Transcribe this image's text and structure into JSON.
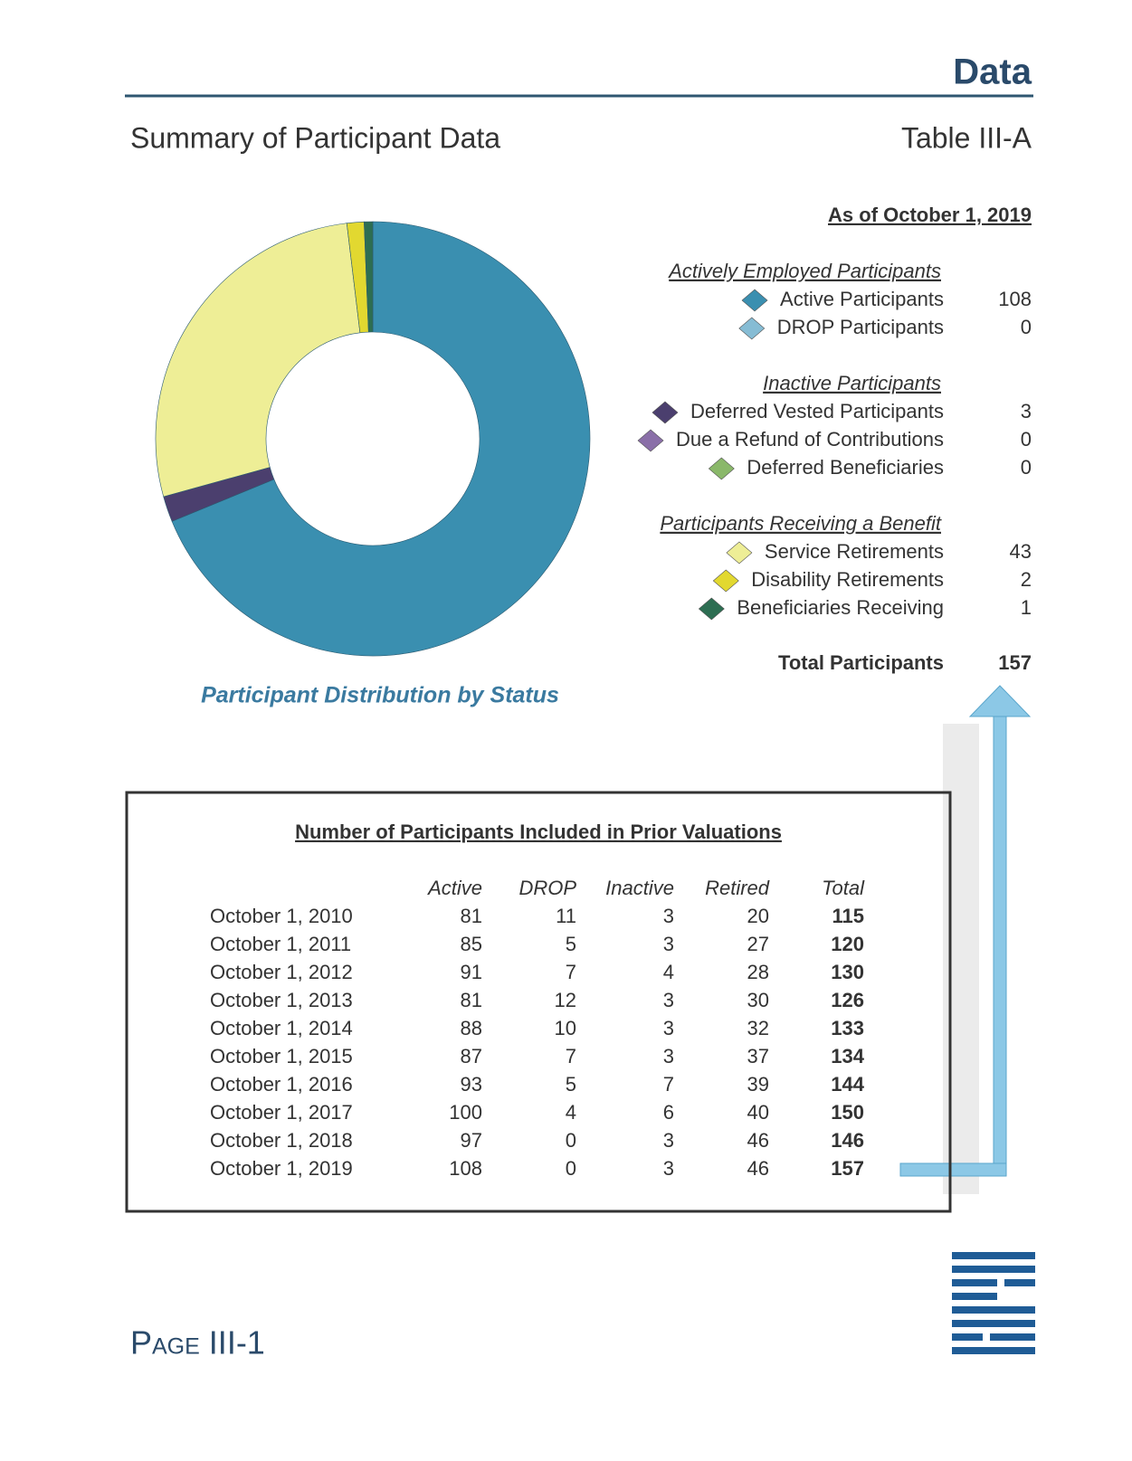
{
  "header": {
    "section": "Data",
    "title": "Summary of Participant Data",
    "table_id": "Table III-A"
  },
  "chart_data": {
    "type": "pie",
    "hole": true,
    "title": "Participant Distribution by Status",
    "subtitle": "As of October 1, 2019",
    "groups": [
      {
        "name": "Actively Employed Participants",
        "categories": [
          "Active Participants",
          "DROP Participants"
        ],
        "values": [
          108,
          0
        ],
        "colors": [
          "#3a8fb0",
          "#86bcd4"
        ]
      },
      {
        "name": "Inactive Participants",
        "categories": [
          "Deferred Vested Participants",
          "Due a Refund of Contributions",
          "Deferred Beneficiaries"
        ],
        "values": [
          3,
          0,
          0
        ],
        "colors": [
          "#4b3f6e",
          "#8a6fa8",
          "#8ab86a"
        ]
      },
      {
        "name": "Participants Receiving a Benefit",
        "categories": [
          "Service Retirements",
          "Disability Retirements",
          "Beneficiaries Receiving"
        ],
        "values": [
          43,
          2,
          1
        ],
        "colors": [
          "#eeee96",
          "#e2d830",
          "#2d6e52"
        ]
      }
    ],
    "total_label": "Total Participants",
    "total": 157
  },
  "table": {
    "title": "Number of Participants Included in Prior Valuations",
    "columns": [
      "Active",
      "DROP",
      "Inactive",
      "Retired",
      "Total"
    ],
    "rows": [
      [
        "October 1, 2010",
        81,
        11,
        3,
        20,
        115
      ],
      [
        "October 1, 2011",
        85,
        5,
        3,
        27,
        120
      ],
      [
        "October 1, 2012",
        91,
        7,
        4,
        28,
        130
      ],
      [
        "October 1, 2013",
        81,
        12,
        3,
        30,
        126
      ],
      [
        "October 1, 2014",
        88,
        10,
        3,
        32,
        133
      ],
      [
        "October 1, 2015",
        87,
        7,
        3,
        37,
        134
      ],
      [
        "October 1, 2016",
        93,
        5,
        7,
        39,
        144
      ],
      [
        "October 1, 2017",
        100,
        4,
        6,
        40,
        150
      ],
      [
        "October 1, 2018",
        97,
        0,
        3,
        46,
        146
      ],
      [
        "October 1, 2019",
        108,
        0,
        3,
        46,
        157
      ]
    ]
  },
  "footer": {
    "page": "Page III-1"
  }
}
